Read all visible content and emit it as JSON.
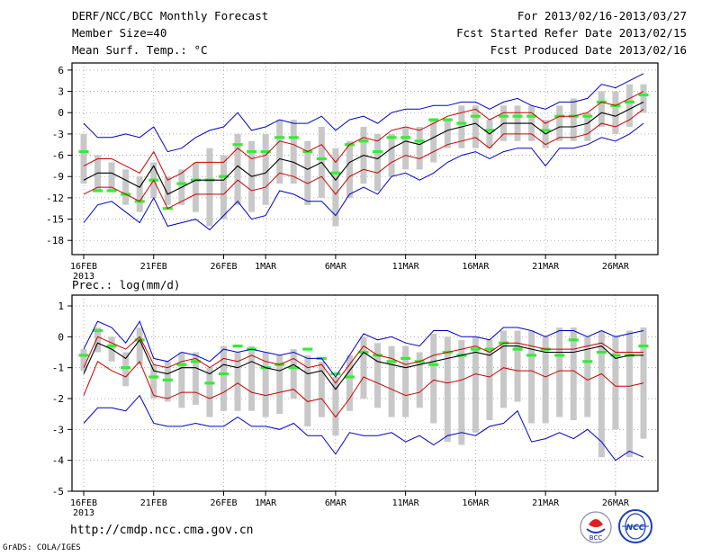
{
  "header": {
    "title": "DERF/NCC/BCC Monthly Forecast",
    "member_size": "Member Size=40",
    "variable": "Mean Surf. Temp.: °C",
    "period": "For 2013/02/16-2013/03/27",
    "start_date": "Fcst Started Refer Date 2013/02/15",
    "produced_date": "Fcst Produced Date 2013/02/16"
  },
  "footer": {
    "url": "http://cmdp.ncc.cma.gov.cn",
    "grads": "GrADS: COLA/IGES",
    "logo_bcc": "BCC",
    "logo_ncc": "NCC"
  },
  "colors": {
    "ensemble_mean": "#000000",
    "spread_band": "#cc0000",
    "extreme_range": "#0000cc",
    "box": "#c8c8c8",
    "climatology": "#33ee33"
  },
  "chart_data": [
    {
      "type": "line",
      "title": "",
      "ylabel": "Mean Surf. Temp.: °C",
      "ylim": [
        -20,
        7
      ],
      "yticks": [
        6,
        3,
        0,
        -3,
        -6,
        -9,
        -12,
        -15,
        -18
      ],
      "ytick_labels": [
        "6",
        "3",
        "0",
        "-3",
        "-6",
        "-9",
        "-12",
        "-15",
        "-18"
      ],
      "x_tick_days": [
        0,
        5,
        10,
        13,
        18,
        23,
        28,
        33,
        38
      ],
      "x_tick_labels": [
        "16FEB",
        "21FEB",
        "26FEB",
        "1MAR",
        "6MAR",
        "11MAR",
        "16MAR",
        "21MAR",
        "26MAR"
      ],
      "x_year_label": "2013",
      "grid": true,
      "series": [
        {
          "name": "ensemble mean",
          "values": [
            -9.5,
            -8.5,
            -8.5,
            -9.5,
            -10.5,
            -7.5,
            -11.5,
            -10.5,
            -9.5,
            -9.5,
            -9.5,
            -7.5,
            -9.0,
            -8.5,
            -6.5,
            -7.0,
            -8.0,
            -7.0,
            -9.5,
            -7.0,
            -6.0,
            -6.5,
            -5.0,
            -4.0,
            -4.5,
            -3.5,
            -2.5,
            -2.0,
            -1.5,
            -3.0,
            -1.5,
            -1.5,
            -1.5,
            -3.0,
            -2.0,
            -2.0,
            -1.5,
            0.0,
            -0.5,
            0.5,
            1.5
          ]
        },
        {
          "name": "upper spread",
          "values": [
            -7.5,
            -6.5,
            -6.5,
            -7.5,
            -8.5,
            -5.5,
            -9.5,
            -8.5,
            -7.0,
            -7.0,
            -7.0,
            -5.0,
            -6.5,
            -6.0,
            -4.0,
            -4.5,
            -5.5,
            -4.5,
            -7.0,
            -4.5,
            -3.5,
            -4.0,
            -2.5,
            -2.0,
            -2.5,
            -1.5,
            -0.5,
            0.0,
            0.5,
            -1.0,
            0.0,
            0.0,
            0.0,
            -1.5,
            -0.5,
            -0.5,
            0.0,
            1.5,
            1.0,
            2.0,
            3.0
          ]
        },
        {
          "name": "lower spread",
          "values": [
            -11.5,
            -10.5,
            -10.5,
            -11.5,
            -12.5,
            -9.5,
            -13.5,
            -12.5,
            -11.5,
            -11.5,
            -11.5,
            -9.5,
            -11.0,
            -10.5,
            -8.5,
            -9.0,
            -10.0,
            -9.0,
            -11.5,
            -9.0,
            -8.0,
            -8.5,
            -7.0,
            -6.0,
            -6.5,
            -5.5,
            -4.5,
            -4.0,
            -3.5,
            -5.0,
            -3.0,
            -3.0,
            -3.0,
            -4.5,
            -3.5,
            -3.5,
            -3.0,
            -1.5,
            -2.0,
            -1.0,
            0.5
          ]
        },
        {
          "name": "maximum",
          "values": [
            -1.5,
            -3.5,
            -3.5,
            -3.0,
            -3.5,
            -2.0,
            -5.5,
            -5.0,
            -3.5,
            -2.5,
            -2.0,
            0.0,
            -2.5,
            -2.0,
            -1.0,
            -1.5,
            -1.5,
            -0.5,
            -2.5,
            -1.0,
            -0.5,
            -1.5,
            0.0,
            0.5,
            0.5,
            1.0,
            1.0,
            1.5,
            1.5,
            0.5,
            1.5,
            2.0,
            1.0,
            0.5,
            1.5,
            1.5,
            2.0,
            4.0,
            3.5,
            4.5,
            5.5
          ]
        },
        {
          "name": "minimum",
          "values": [
            -15.5,
            -13.0,
            -12.5,
            -14.0,
            -15.5,
            -12.0,
            -16.0,
            -15.5,
            -15.0,
            -16.5,
            -14.5,
            -12.5,
            -15.0,
            -14.5,
            -11.0,
            -11.5,
            -12.5,
            -12.5,
            -14.5,
            -11.5,
            -10.5,
            -11.5,
            -9.0,
            -8.5,
            -9.5,
            -8.5,
            -7.0,
            -6.0,
            -5.5,
            -6.5,
            -5.5,
            -5.0,
            -5.0,
            -7.5,
            -5.0,
            -5.0,
            -4.5,
            -3.5,
            -4.0,
            -3.0,
            -1.5
          ]
        },
        {
          "name": "box top",
          "values": [
            -3,
            -6,
            -7,
            -8,
            -9,
            -7,
            -9,
            -8,
            -7,
            -5,
            -6,
            -3,
            -4,
            -3,
            -1,
            -1,
            -4,
            -2,
            -5,
            -4,
            -2,
            -3,
            -3,
            -2,
            -2,
            -1,
            -1,
            1,
            1,
            -1,
            1,
            1,
            1,
            -1,
            1,
            2,
            0,
            3,
            3,
            4,
            4
          ]
        },
        {
          "name": "box bottom",
          "values": [
            -10,
            -11,
            -11,
            -13,
            -14,
            -12,
            -13,
            -13,
            -14,
            -16,
            -15,
            -13,
            -14,
            -13,
            -10,
            -10,
            -13,
            -12,
            -16,
            -12,
            -10,
            -11,
            -9,
            -8,
            -8,
            -7,
            -5,
            -5,
            -5,
            -5,
            -4,
            -4,
            -4,
            -5,
            -4,
            -4,
            -4,
            -2,
            -3,
            -2,
            0
          ]
        },
        {
          "name": "climatology",
          "values": [
            -5.5,
            -11.0,
            -11.0,
            -11.5,
            -12.5,
            -9.5,
            -13.5,
            -10.0,
            -9.5,
            -9.5,
            -9.0,
            -4.5,
            -5.5,
            -5.5,
            -3.5,
            -3.5,
            -5.5,
            -6.5,
            -8.5,
            -4.5,
            -4.0,
            -5.5,
            -3.5,
            -3.5,
            -4.0,
            -1.0,
            -1.0,
            -1.5,
            -0.5,
            -2.5,
            -0.5,
            -0.5,
            -0.5,
            -2.5,
            -0.5,
            -0.5,
            -0.5,
            1.5,
            1.0,
            1.5,
            2.5
          ]
        }
      ]
    },
    {
      "type": "line",
      "title": "Prec.: log(mm/d)",
      "ylabel": "Prec.: log(mm/d)",
      "ylim": [
        -5,
        1.35
      ],
      "yticks": [
        1,
        0,
        -1,
        -2,
        -3,
        -4,
        -5
      ],
      "ytick_labels": [
        "1",
        "0",
        "-1",
        "-2",
        "-3",
        "-4",
        "-5"
      ],
      "x_tick_days": [
        0,
        5,
        10,
        13,
        18,
        23,
        28,
        33,
        38
      ],
      "x_tick_labels": [
        "16FEB",
        "21FEB",
        "26FEB",
        "1MAR",
        "6MAR",
        "11MAR",
        "16MAR",
        "21MAR",
        "26MAR"
      ],
      "x_year_label": "2013",
      "grid": true,
      "series": [
        {
          "name": "ensemble mean",
          "values": [
            -1.2,
            -0.2,
            -0.4,
            -0.7,
            -0.1,
            -1.1,
            -1.2,
            -1.0,
            -1.0,
            -1.2,
            -0.9,
            -1.0,
            -0.8,
            -1.0,
            -1.1,
            -0.9,
            -1.2,
            -1.1,
            -1.7,
            -1.1,
            -0.5,
            -0.8,
            -0.9,
            -1.0,
            -0.9,
            -0.8,
            -0.7,
            -0.6,
            -0.5,
            -0.6,
            -0.3,
            -0.3,
            -0.4,
            -0.5,
            -0.5,
            -0.5,
            -0.4,
            -0.3,
            -0.7,
            -0.6,
            -0.6
          ]
        },
        {
          "name": "upper spread",
          "values": [
            -1.0,
            0.0,
            -0.2,
            -0.4,
            0.0,
            -0.9,
            -1.0,
            -0.8,
            -0.7,
            -1.0,
            -0.7,
            -0.8,
            -0.6,
            -0.8,
            -0.9,
            -0.7,
            -1.0,
            -0.9,
            -1.5,
            -0.9,
            -0.3,
            -0.6,
            -0.7,
            -0.9,
            -0.8,
            -0.6,
            -0.5,
            -0.4,
            -0.3,
            -0.5,
            -0.2,
            -0.2,
            -0.3,
            -0.4,
            -0.4,
            -0.4,
            -0.3,
            -0.2,
            -0.5,
            -0.5,
            -0.5
          ]
        },
        {
          "name": "lower spread",
          "values": [
            -1.9,
            -0.8,
            -1.1,
            -1.3,
            -0.8,
            -1.9,
            -2.0,
            -1.8,
            -1.8,
            -2.0,
            -1.8,
            -1.5,
            -1.8,
            -1.9,
            -1.8,
            -1.7,
            -2.1,
            -2.0,
            -2.6,
            -2.0,
            -1.3,
            -1.5,
            -1.7,
            -1.9,
            -1.8,
            -1.4,
            -1.5,
            -1.4,
            -1.2,
            -1.3,
            -1.0,
            -1.1,
            -1.1,
            -1.3,
            -1.1,
            -1.1,
            -1.4,
            -1.2,
            -1.6,
            -1.6,
            -1.5
          ]
        },
        {
          "name": "maximum",
          "values": [
            -0.4,
            0.5,
            0.3,
            -0.2,
            0.5,
            -0.7,
            -0.8,
            -0.5,
            -0.6,
            -0.8,
            -0.4,
            -0.5,
            -0.4,
            -0.5,
            -0.6,
            -0.5,
            -0.7,
            -0.7,
            -1.3,
            -0.6,
            0.1,
            -0.1,
            0.0,
            -0.2,
            -0.3,
            0.2,
            0.2,
            0.0,
            0.0,
            -0.1,
            0.3,
            0.3,
            0.2,
            0.0,
            0.2,
            0.2,
            0.0,
            0.2,
            0.0,
            0.1,
            0.2
          ]
        },
        {
          "name": "minimum",
          "values": [
            -2.8,
            -2.3,
            -2.3,
            -2.4,
            -1.9,
            -2.8,
            -2.9,
            -2.9,
            -2.8,
            -2.9,
            -2.9,
            -2.6,
            -2.9,
            -2.9,
            -3.0,
            -2.8,
            -3.2,
            -3.2,
            -3.8,
            -3.1,
            -3.2,
            -3.2,
            -3.1,
            -3.4,
            -3.2,
            -3.5,
            -3.2,
            -3.1,
            -3.2,
            -2.9,
            -2.8,
            -2.4,
            -3.4,
            -3.3,
            -3.1,
            -3.3,
            -3.0,
            -3.4,
            -4.0,
            -3.7,
            -3.9
          ]
        },
        {
          "name": "box top",
          "values": [
            -0.4,
            0.3,
            0.0,
            -0.5,
            0.3,
            -0.9,
            -0.8,
            -0.5,
            -0.5,
            -1.0,
            -0.3,
            -0.5,
            -0.3,
            -0.5,
            -0.6,
            -0.4,
            -0.6,
            -0.8,
            -1.3,
            -0.6,
            0.0,
            -0.2,
            -0.3,
            -0.3,
            -0.5,
            0.1,
            0.0,
            -0.1,
            0.0,
            -0.1,
            0.2,
            0.2,
            0.2,
            0.0,
            0.3,
            0.3,
            0.0,
            0.2,
            0.0,
            0.2,
            0.3
          ]
        },
        {
          "name": "box bottom",
          "values": [
            -1.1,
            -0.5,
            -0.8,
            -1.6,
            -0.9,
            -2.0,
            -2.1,
            -2.3,
            -2.2,
            -2.6,
            -2.4,
            -2.4,
            -2.4,
            -2.6,
            -2.5,
            -2.0,
            -2.9,
            -2.6,
            -3.2,
            -2.4,
            -2.0,
            -2.3,
            -2.6,
            -2.6,
            -2.3,
            -2.8,
            -3.4,
            -3.5,
            -3.1,
            -2.7,
            -2.3,
            -2.1,
            -2.8,
            -2.8,
            -2.6,
            -2.7,
            -2.6,
            -3.9,
            -3.0,
            -3.9,
            -3.3
          ]
        },
        {
          "name": "climatology",
          "values": [
            -0.6,
            0.2,
            -0.3,
            -1.0,
            -0.1,
            -1.3,
            -1.4,
            -0.9,
            -0.8,
            -1.5,
            -1.2,
            -0.3,
            -0.4,
            -1.0,
            -0.9,
            -1.0,
            -0.4,
            -0.7,
            -1.2,
            -1.3,
            -0.5,
            -0.6,
            -0.8,
            -0.7,
            -0.8,
            -0.9,
            -0.5,
            -0.6,
            -0.4,
            -0.4,
            -0.2,
            -0.4,
            -0.6,
            -0.4,
            -0.6,
            -0.1,
            -0.8,
            -0.5,
            -0.6,
            -0.6,
            -0.3
          ]
        }
      ]
    }
  ]
}
